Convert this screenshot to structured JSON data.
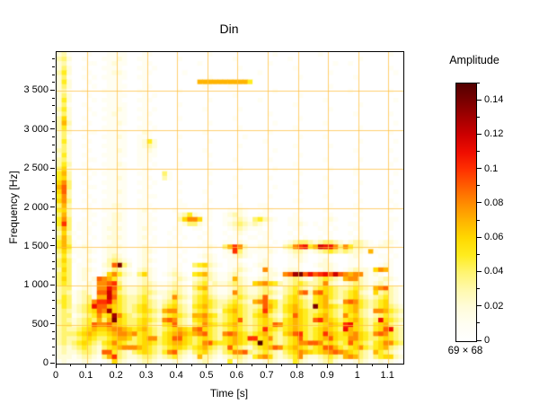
{
  "figure": {
    "background": "#ffffff",
    "text_color": "#000000"
  },
  "chart_data": {
    "type": "heatmap",
    "title": "Din",
    "xlabel": "Time [s]",
    "ylabel": "Frequency [Hz]",
    "grid_label": "69 × 68",
    "x_range": [
      0,
      1.15
    ],
    "y_range": [
      0,
      4000
    ],
    "grid_on": true,
    "grid_color": "#ffbf40",
    "x_ticks": {
      "values": [
        0,
        0.1,
        0.2,
        0.3,
        0.4,
        0.5,
        0.6,
        0.7,
        0.8,
        0.9,
        1,
        1.1
      ],
      "labels": [
        "0",
        "0.1",
        "0.2",
        "0.3",
        "0.4",
        "0.5",
        "0.6",
        "0.7",
        "0.8",
        "0.9",
        "1",
        "1.1"
      ],
      "minor_step": 0.05
    },
    "y_ticks": {
      "values": [
        0,
        500,
        1000,
        1500,
        2000,
        2500,
        3000,
        3500
      ],
      "labels": [
        "0",
        "500",
        "1 000",
        "1 500",
        "2 000",
        "2 500",
        "3 000",
        "3 500"
      ],
      "minor_step": 100
    },
    "colorbar": {
      "title": "Amplitude",
      "range": [
        0,
        0.15
      ],
      "values": [
        0,
        0.02,
        0.04,
        0.06,
        0.08,
        0.1,
        0.12,
        0.14
      ],
      "labels": [
        "0",
        "0.02",
        "0.04",
        "0.06",
        "0.08",
        "0.1",
        "0.12",
        "0.14"
      ],
      "minor_step": 0.01
    },
    "grid_size": {
      "cols": 69,
      "rows": 68
    },
    "level_amplitude_unit": 0.01,
    "palette": [
      "#ffffff",
      "#fffef2",
      "#fffcd9",
      "#fff9ad",
      "#fff470",
      "#ffec1e",
      "#ffd800",
      "#ffb400",
      "#ff8c00",
      "#ff5f00",
      "#ff3000",
      "#ef0d00",
      "#cd0000",
      "#a30000",
      "#7a0000",
      "#520000"
    ],
    "rows": [
      "231000100011110001100000000000100000000000010000000010000000000000100",
      "342001000111210011000000100000000001000000000010000000000000100000000",
      "231000110012110001100000000010000000000000100000000000010010000000000",
      "242001000111100011010000000000000000100000000001000000000000000000100",
      "352000100012210001100000010000000000000010000000000000100000000000010",
      "241001010111110011000000000000100000000000000000100000000001000000000",
      "252000100011100001000000000077777777775000000000000000000000000000000",
      "242000010011110001100000000001100011000000000000000000100000000000000",
      "231001000111100011000000100000000000000000010000000000000010000000100",
      "242000100011110001010000000000000001000000000000100000000000000000000",
      "252000010111100011100000000000100000000010000000000001000000000000010",
      "241001000011110001000000100000000000000000000001000000000000100000000",
      "352000100111210011010000000001000000100000000000000000100000000000000",
      "242000010012110001100000000000000000000000100000000000000001000000100",
      "362001000111110011000000100000000001000000000000100000000000000000000",
      "373000100011210001100000000000100000000000010000000001000000000000010",
      "352001000111100011010000000000000000100000000001000000000000100000000",
      "242000110011110002100000000001000000000000100000000000000000000000100",
      "241001000111210011100000100000000000010000000000100001000000000000000",
      "252000100011110012520000000000100000000001000000000000000000100000010",
      "242001000111110012320000000000000000100000000001000000100000000000000",
      "342000100011210011210000100001000000000000010000000000000001000000100",
      "252001000111110011110000000000100000000000000000100000000000000000000",
      "342000110011100011100000000000000001000000100000000001000000100000010",
      "353001000111210011010000100000100000000000000001000000000000000000100",
      "462000100011110001100000000000000000100000010000000000100001000000000",
      "573001010111110011000410000000100000000000000000100000000001000000010",
      "563000100011210001100310000000000001000000100000000001000000000000000",
      "684001000111110011010000100000100000000000000001000000000000100000100",
      "794000110011110001100000000000000000100000010000000000100000000000000",
      "693001000111210011000000100001000000000000000000100000000001000000010",
      "583000100011110001110000000000000001000000100000000001000000000000000",
      "684001010111110011000000100000100000000000000001100000000000100000100",
      "473000100112210011100000110001000000100011000000000000100001000000010",
      "563001100111110012010001000000100011210001100000100001000000100000100",
      "473000110012210011100000235210100123210011000001000000100001000000000",
      "584001100112210011110000368861100112321453210011100001210000100000110",
      "5a4011010112110011100000124421000123432321100011210101100011000000100",
      "474011100122210012110001100110100012321110100001100011010001100000100",
      "363101100112110011100010100001100101210011100010100001100010100001000",
      "474011010122210012010001010010100011101101100001010010100001100000100",
      "574101100112110011110010100001100110210011010123443234432123321012210",
      "57511210012221001210001110001121047a831122100348ab57cbb84853321122100",
      "46411121012211001221001101000110012a421111210123321234543432217100100",
      "353011100123210012100011100012210112321011100012210011100012100011010",
      "464101210134321012210011010001210011100012100011210012100011100001100",
      "454011100239e42012100011100456321011210122100011100122210011100012100",
      "364012210124321023210012100123210012321018210122100012210123221687100",
      "45401210026853214621012321056732112321001222189de9b9ab9c9878821210100",
      "464012129875321123210012321234321127321123210234321345432788321123210",
      "45401121889a421123321123210345232234321678653234543348321234321232100",
      "3440122188b9532234321123321467321123432234321345432456543345432789321",
      "3431232199c8432234432234321345321128432234432345893896543456321634321",
      "3541234177c9543345321238432456432234543349321456432567543456432345321",
      "45412348aab7543345432345321456543345432789653456543567432898543456321",
      "3542345b9976543456432456432567543456543349753567543e67654567543456432",
      "3432345698d654345654378843245643256754345a643567654456543567432887543",
      "34412345856d854345432456543778653456543567432459654567543856432345432",
      "34323454747e6544565438984325675434569434565435676549a76545675434b6543",
      "344234598897654456432569432458654567543456598567654456765ab6543567432",
      "34334567667887656754345676589654345654345a654567654567654b76543569b43",
      "344456765567887856543567876789543898654567543679a5456a765678654898543",
      "34334565445677645688456996545654356765aa56843456954567965588654456543",
      "3434565435686544566545677654589655676545f6543456889985654596543568854",
      "232345432456788876543456654567543495432456798567654569975456854567432",
      "232234432995432456543589432456432458894345432456876567898765432754321",
      "22212332147a432234432345321273321234432578632345832234543787432456632",
      "121112210126321123321112210123210151321112321125321123421112321121210"
    ]
  }
}
